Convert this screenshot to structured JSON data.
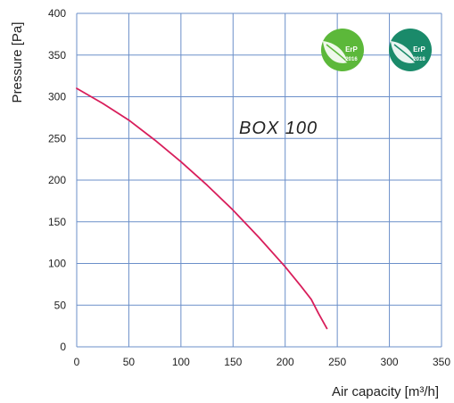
{
  "chart_data": {
    "type": "line",
    "xlabel": "Air capacity [m³/h]",
    "ylabel": "Pressure [Pa]",
    "xlim": [
      0,
      350
    ],
    "ylim": [
      0,
      400
    ],
    "xticks": [
      0,
      50,
      100,
      150,
      200,
      250,
      300,
      350
    ],
    "yticks": [
      0,
      50,
      100,
      150,
      200,
      250,
      300,
      350,
      400
    ],
    "x_tick_labels": [
      "0",
      "50",
      "100",
      "150",
      "200",
      "250",
      "300",
      "350"
    ],
    "y_tick_labels": [
      "0",
      "50",
      "100",
      "150",
      "200",
      "250",
      "300",
      "350",
      "400"
    ],
    "grid": true,
    "series": [
      {
        "name": "BOX 100",
        "color": "#d81e5b",
        "x": [
          0,
          25,
          50,
          75,
          100,
          125,
          150,
          175,
          200,
          215,
          225,
          232,
          240
        ],
        "y": [
          310,
          292,
          272,
          248,
          222,
          194,
          164,
          131,
          96,
          73,
          57,
          40,
          22
        ]
      }
    ],
    "annotation": "BOX 100"
  },
  "badges": [
    {
      "label": "ErP",
      "year": "2016",
      "color": "#5cb83a"
    },
    {
      "label": "ErP",
      "year": "2018",
      "color": "#1a8a6a"
    }
  ]
}
